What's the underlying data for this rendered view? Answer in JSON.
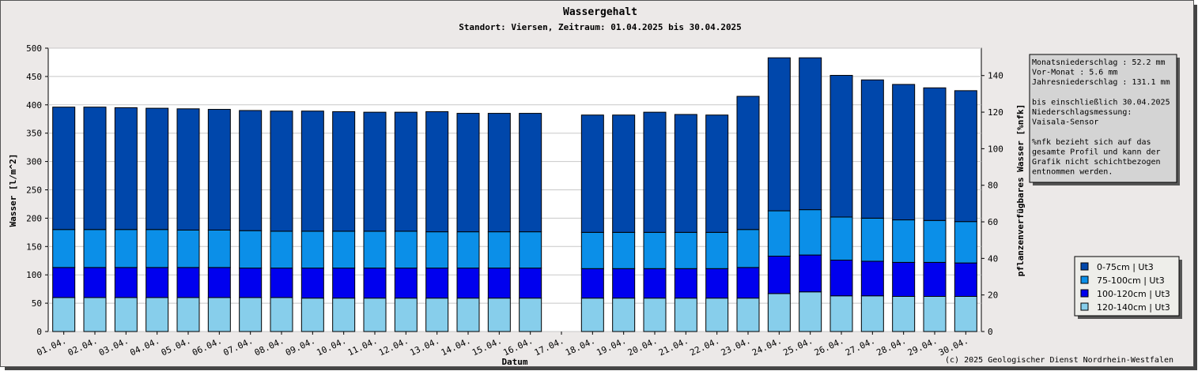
{
  "chart_data": {
    "type": "bar",
    "stacked": true,
    "title": "Wassergehalt",
    "subtitle": "Standort: Viersen, Zeitraum: 01.04.2025 bis 30.04.2025",
    "xlabel": "Datum",
    "ylabel": "Wasser [l/m^2]",
    "y2label": "pflanzenverfügbares Wasser [%nfk]",
    "ylim": [
      0,
      500
    ],
    "y2lim": [
      0,
      155
    ],
    "yticks": [
      "0",
      "50",
      "100",
      "150",
      "200",
      "250",
      "300",
      "350",
      "400",
      "450",
      "500"
    ],
    "y2ticks": [
      "0",
      "20",
      "40",
      "60",
      "80",
      "100",
      "120",
      "140"
    ],
    "grid": true,
    "legend_position": "bottom-right",
    "categories": [
      "01.04.",
      "02.04.",
      "03.04.",
      "04.04.",
      "05.04.",
      "06.04.",
      "07.04.",
      "08.04.",
      "09.04.",
      "10.04.",
      "11.04.",
      "12.04.",
      "13.04.",
      "14.04.",
      "15.04.",
      "16.04.",
      "17.04.",
      "18.04.",
      "19.04.",
      "20.04.",
      "21.04.",
      "22.04.",
      "23.04.",
      "24.04.",
      "25.04.",
      "26.04.",
      "27.04.",
      "28.04.",
      "29.04.",
      "30.04."
    ],
    "series": [
      {
        "name": "120-140cm | Ut3",
        "color": "#87ceeb",
        "values": [
          60,
          60,
          60,
          60,
          60,
          60,
          60,
          60,
          59,
          59,
          59,
          59,
          59,
          59,
          59,
          59,
          null,
          59,
          59,
          59,
          59,
          59,
          59,
          67,
          70,
          63,
          63,
          62,
          62,
          62
        ]
      },
      {
        "name": "100-120cm | Ut3",
        "color": "#0000ee",
        "values": [
          53,
          53,
          53,
          53,
          53,
          53,
          52,
          52,
          53,
          53,
          53,
          53,
          53,
          53,
          53,
          53,
          null,
          52,
          52,
          52,
          52,
          52,
          54,
          66,
          65,
          63,
          61,
          60,
          60,
          59
        ]
      },
      {
        "name": "75-100cm | Ut3",
        "color": "#0b8fe8",
        "values": [
          67,
          67,
          67,
          67,
          66,
          66,
          66,
          65,
          65,
          65,
          65,
          65,
          64,
          64,
          64,
          64,
          null,
          64,
          64,
          64,
          64,
          64,
          67,
          80,
          80,
          76,
          76,
          75,
          74,
          73
        ]
      },
      {
        "name": "0-75cm | Ut3",
        "color": "#0047ab",
        "values": [
          216,
          216,
          215,
          214,
          214,
          213,
          212,
          212,
          212,
          211,
          210,
          210,
          212,
          209,
          209,
          209,
          null,
          207,
          207,
          212,
          208,
          207,
          235,
          270,
          268,
          250,
          244,
          239,
          234,
          231
        ]
      }
    ]
  },
  "info_box": {
    "lines": [
      "Monatsniederschlag :   52.2 mm",
      "Vor-Monat          :    5.6 mm",
      "Jahresniederschlag :  131.1 mm",
      "",
      "bis einschließlich 30.04.2025",
      "Niederschlagsmessung:",
      "            Vaisala-Sensor",
      "",
      "   %nfk bezieht sich auf das",
      "   gesamte Profil und kann der",
      "   Grafik nicht schichtbezogen",
      "   entnommen werden."
    ]
  },
  "legend": {
    "items": [
      {
        "label": "0-75cm | Ut3",
        "color": "#0047ab"
      },
      {
        "label": "75-100cm | Ut3",
        "color": "#0b8fe8"
      },
      {
        "label": "100-120cm | Ut3",
        "color": "#0000ee"
      },
      {
        "label": "120-140cm | Ut3",
        "color": "#87ceeb"
      }
    ]
  },
  "copyright": "(c) 2025 Geologischer Dienst Nordrhein-Westfalen"
}
